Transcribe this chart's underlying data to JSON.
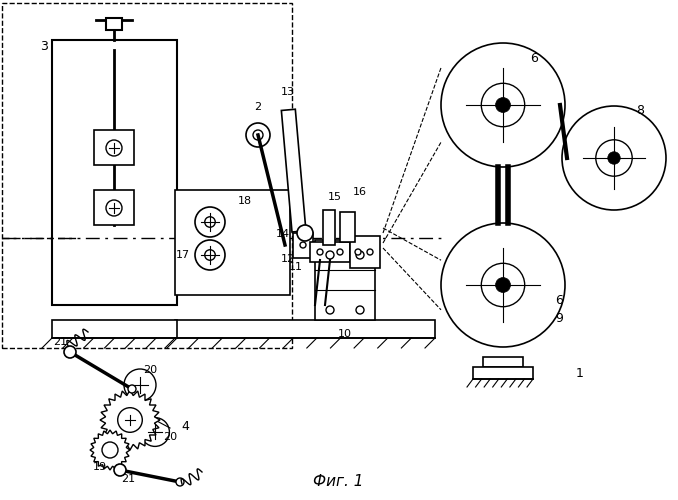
{
  "title": "Фиг. 1",
  "bg_color": "#ffffff",
  "line_color": "#000000",
  "figsize": [
    6.78,
    5.0
  ],
  "dpi": 100
}
